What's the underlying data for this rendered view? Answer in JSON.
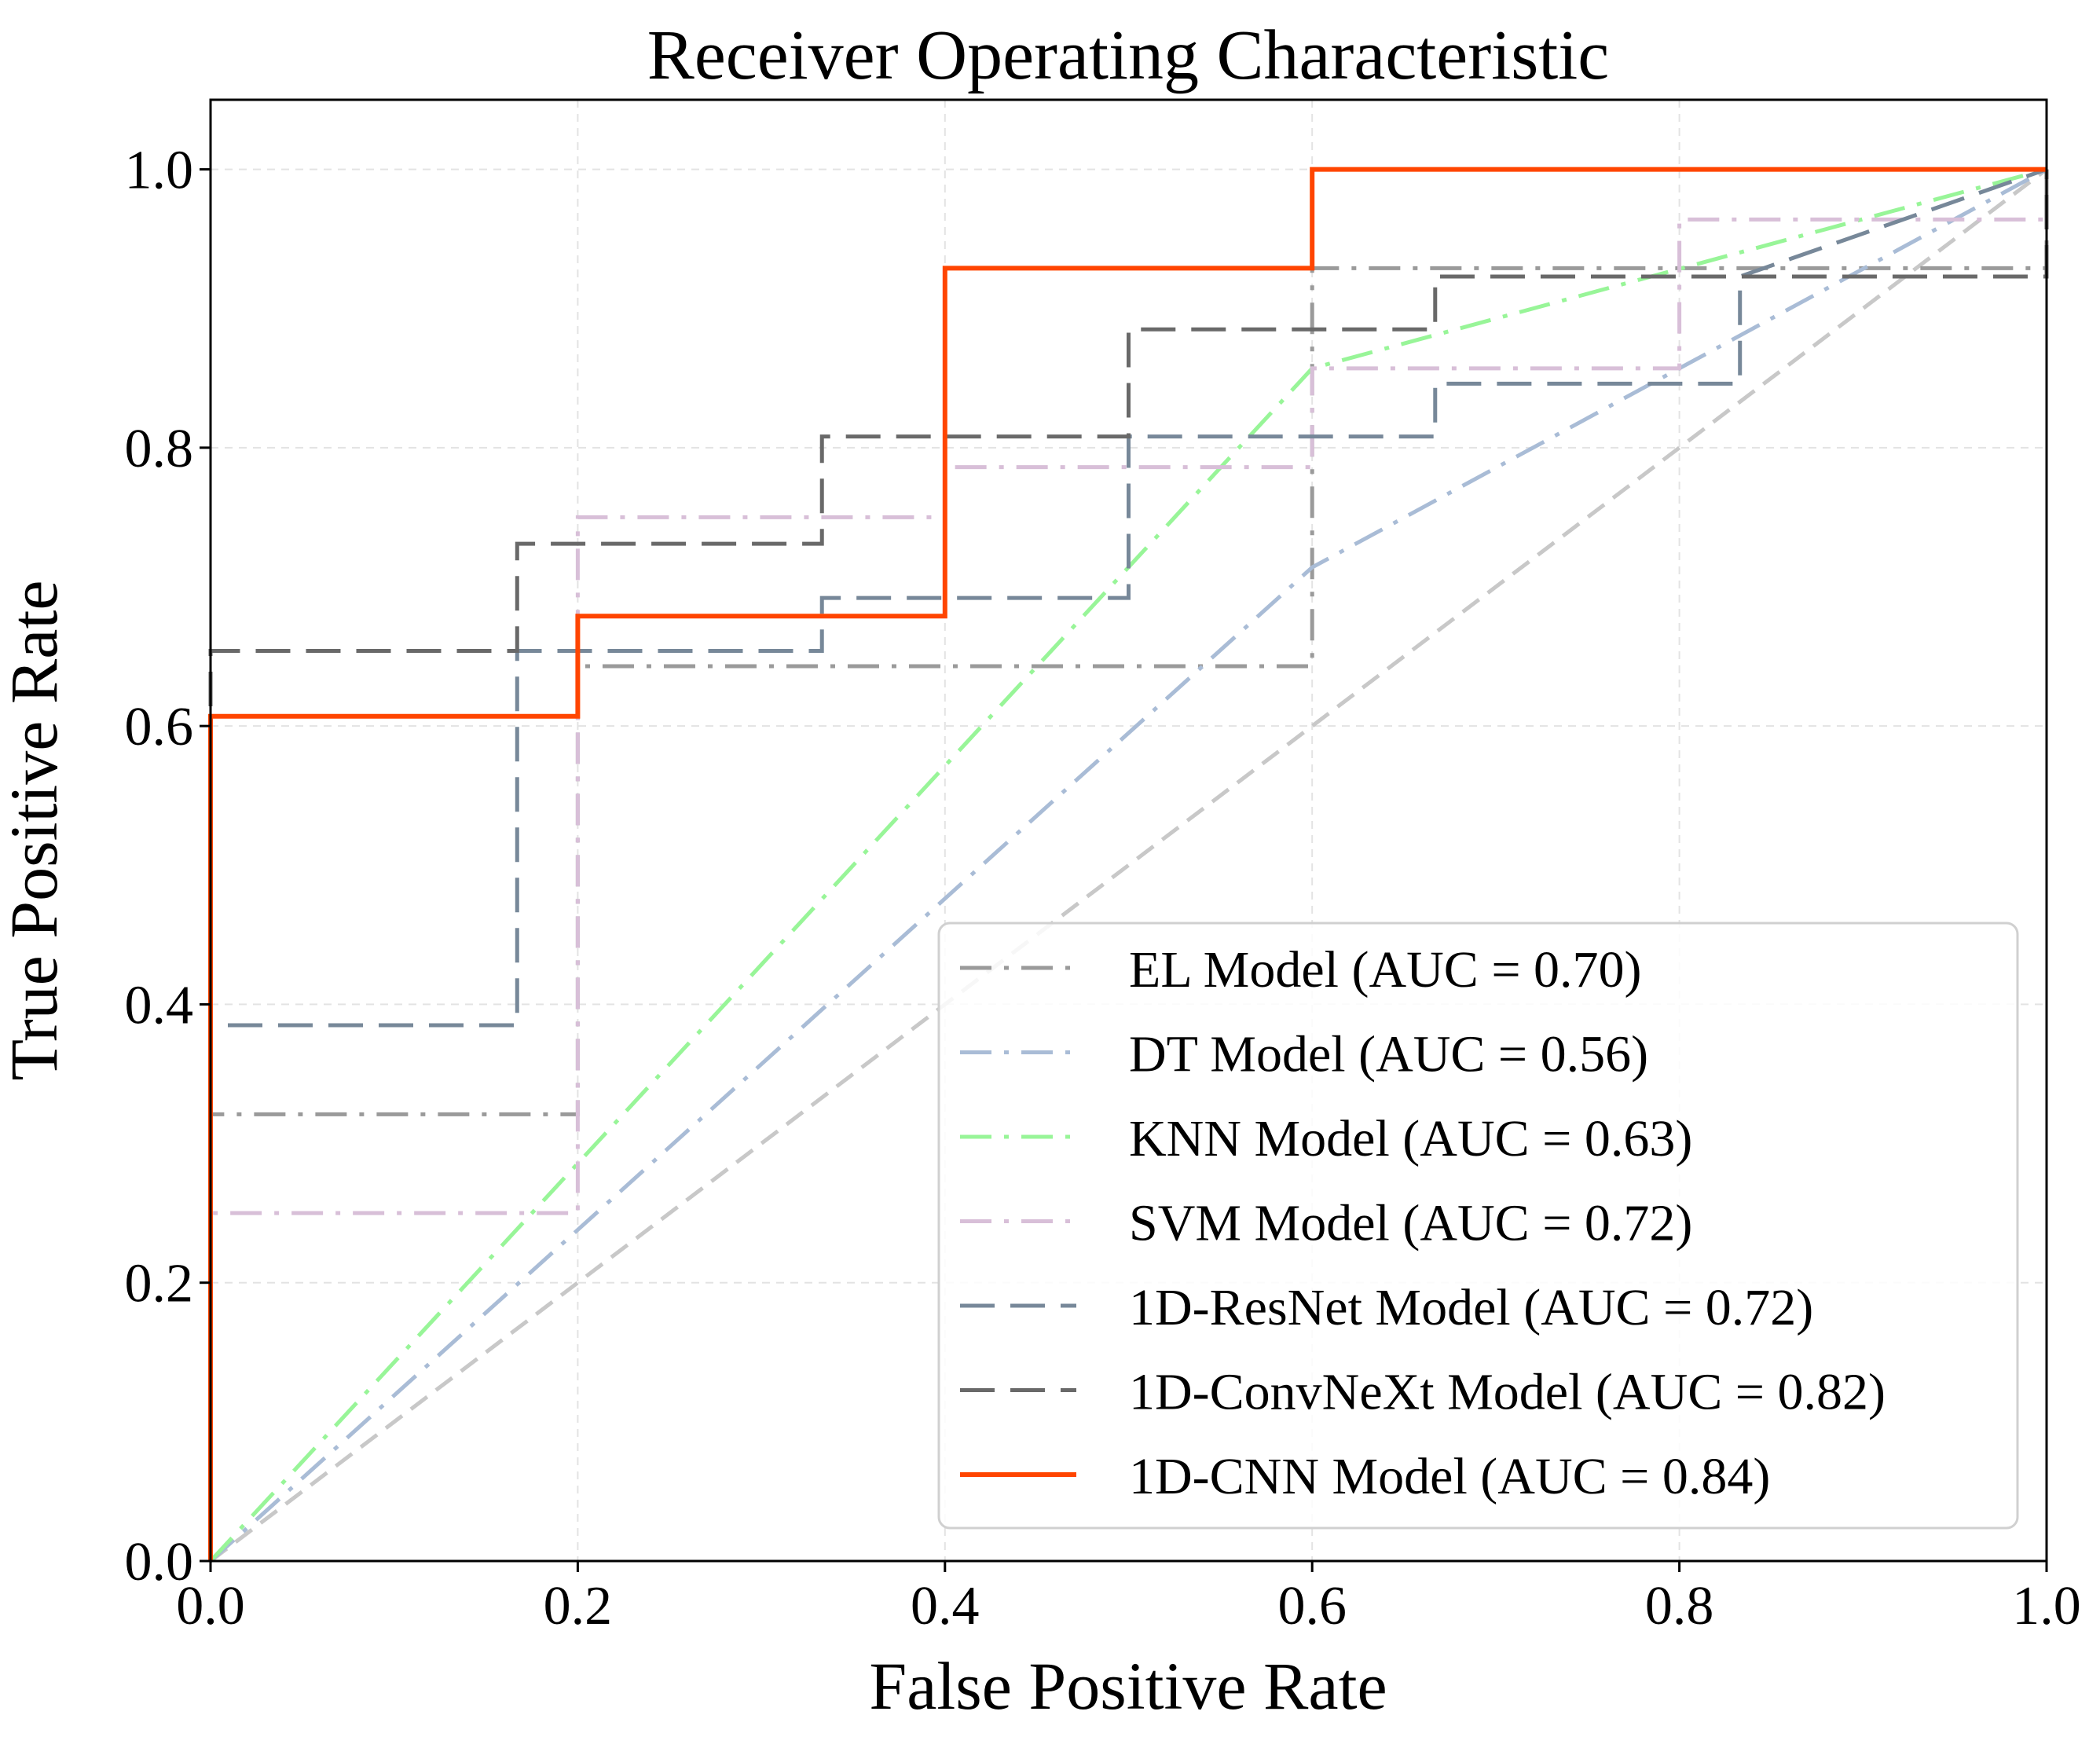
{
  "chart_data": {
    "type": "line",
    "title": "Receiver Operating Characteristic",
    "xlabel": "False Positive Rate",
    "ylabel": "True Positive Rate",
    "xlim": [
      0.0,
      1.0
    ],
    "ylim": [
      0.0,
      1.05
    ],
    "xticks": [
      "0.0",
      "0.2",
      "0.4",
      "0.6",
      "0.8",
      "1.0"
    ],
    "yticks": [
      "0.0",
      "0.2",
      "0.4",
      "0.6",
      "0.8",
      "1.0"
    ],
    "grid": true,
    "legend_position": "lower-right",
    "diagonal_reference": {
      "x": [
        0,
        1
      ],
      "y": [
        0,
        1
      ],
      "color": "#c8c8c8",
      "style": "dashed"
    },
    "series": [
      {
        "name": "EL Model (AUC = 0.70)",
        "color": "#9a9a9a",
        "style": "dashdot",
        "x": [
          0,
          0,
          0.2,
          0.2,
          0.6,
          0.6,
          1.0,
          1.0
        ],
        "y": [
          0,
          0.321,
          0.321,
          0.643,
          0.643,
          0.929,
          0.929,
          1.0
        ]
      },
      {
        "name": "DT Model (AUC = 0.56)",
        "color": "#a9bcd6",
        "style": "dashdot",
        "x": [
          0,
          0.6,
          1.0
        ],
        "y": [
          0,
          0.714,
          1.0
        ]
      },
      {
        "name": "KNN Model (AUC = 0.63)",
        "color": "#98f598",
        "style": "dashdot",
        "x": [
          0,
          0.6,
          1.0
        ],
        "y": [
          0,
          0.857,
          1.0
        ]
      },
      {
        "name": "SVM Model (AUC = 0.72)",
        "color": "#d8bfd8",
        "style": "dashdot",
        "x": [
          0,
          0,
          0.2,
          0.2,
          0.4,
          0.4,
          0.6,
          0.6,
          0.8,
          0.8,
          1.0
        ],
        "y": [
          0,
          0.25,
          0.25,
          0.75,
          0.75,
          0.786,
          0.786,
          0.857,
          0.857,
          0.964,
          0.964
        ]
      },
      {
        "name": "1D-ResNet Model (AUC = 0.72)",
        "color": "#778899",
        "style": "dashed",
        "x": [
          0,
          0,
          0.167,
          0.167,
          0.333,
          0.333,
          0.5,
          0.5,
          0.667,
          0.667,
          0.833,
          0.833,
          1.0
        ],
        "y": [
          0,
          0.385,
          0.385,
          0.654,
          0.654,
          0.692,
          0.692,
          0.808,
          0.808,
          0.846,
          0.846,
          0.923,
          1.0
        ]
      },
      {
        "name": "1D-ConvNeXt Model (AUC = 0.82)",
        "color": "#696969",
        "style": "dashed",
        "x": [
          0,
          0,
          0.167,
          0.167,
          0.333,
          0.333,
          0.5,
          0.5,
          0.667,
          0.667,
          1.0,
          1.0
        ],
        "y": [
          0,
          0.654,
          0.654,
          0.731,
          0.731,
          0.808,
          0.808,
          0.885,
          0.885,
          0.923,
          0.923,
          1.0
        ]
      },
      {
        "name": "1D-CNN Model (AUC = 0.84)",
        "color": "#ff4500",
        "style": "solid",
        "x": [
          0,
          0,
          0.2,
          0.2,
          0.4,
          0.4,
          0.6,
          0.6,
          1.0
        ],
        "y": [
          0,
          0.607,
          0.607,
          0.679,
          0.679,
          0.929,
          0.929,
          1.0,
          1.0
        ]
      }
    ]
  }
}
